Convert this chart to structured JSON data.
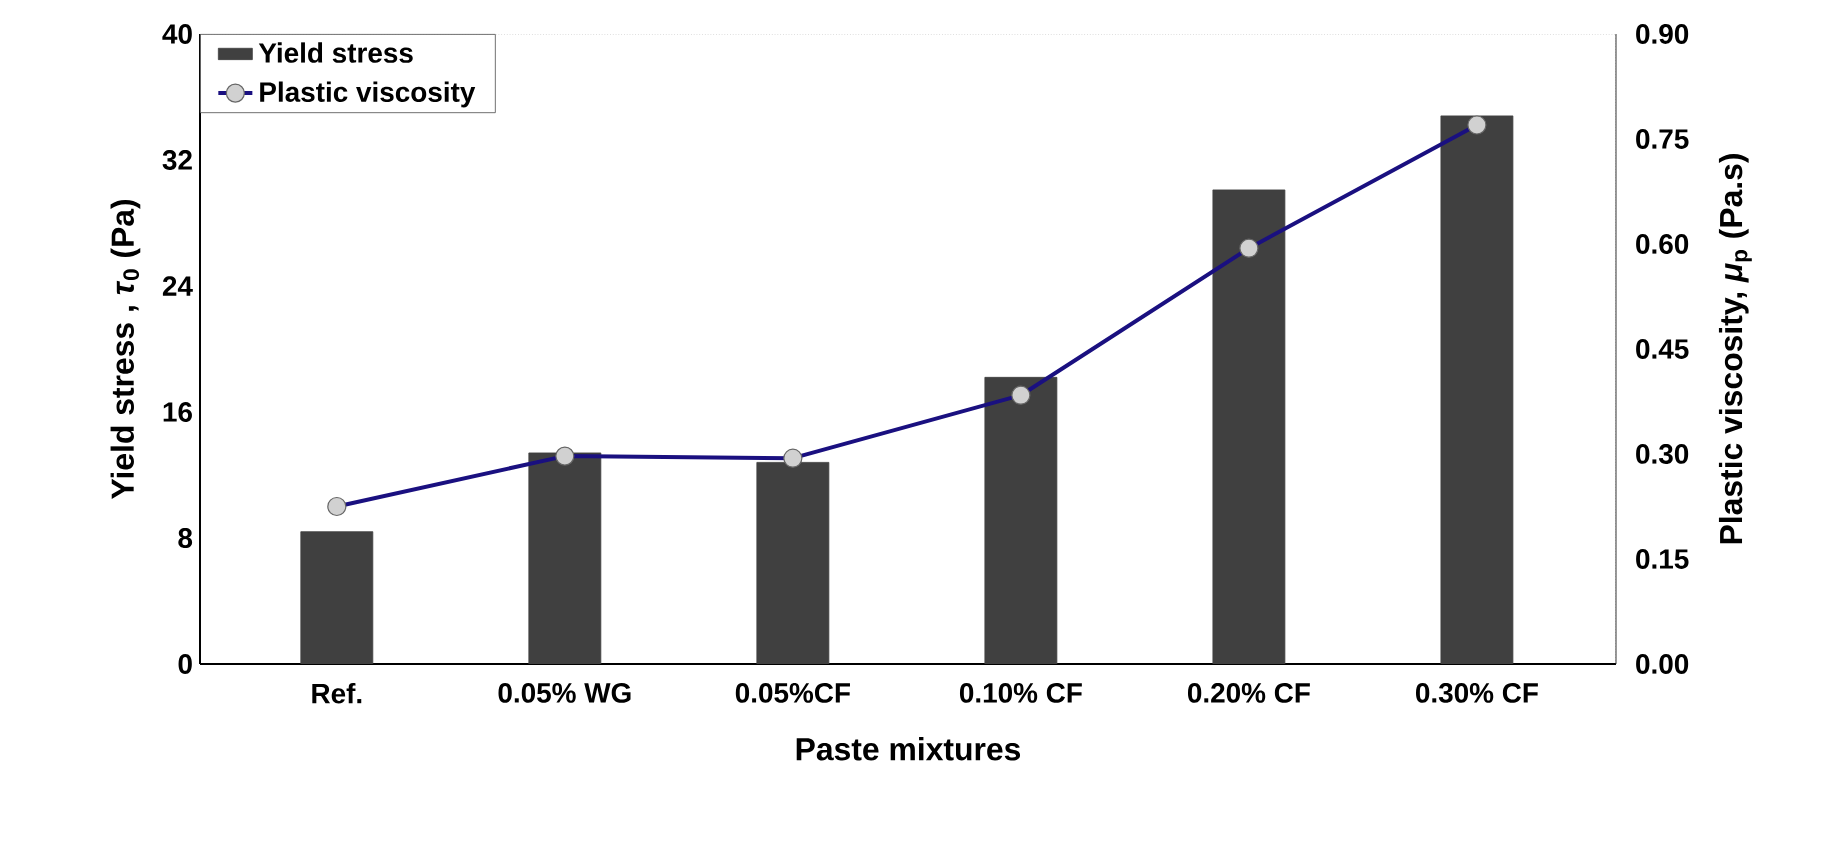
{
  "chart_data": {
    "type": "bar",
    "xlabel": "Paste mixtures",
    "ylabel": "Yield stress , *τ*$_{0}$ (Pa)",
    "y2label": "Plastic viscosity, *μ*$_{p}$ (Pa.s)",
    "categories": [
      "Ref.",
      "0.05% WG",
      "0.05%CF",
      "0.10% CF",
      "0.20% CF",
      "0.30% CF"
    ],
    "series": [
      {
        "name": "Yield stress",
        "color": "#404040",
        "values": [
          8.4,
          13.4,
          12.8,
          18.2,
          30.1,
          34.8
        ]
      },
      {
        "name": "Plastic viscosity",
        "type": "line",
        "axis": "y2",
        "color": "#1a1080",
        "marker": "circle",
        "values": [
          0.225,
          0.297,
          0.294,
          0.384,
          0.594,
          0.77
        ]
      }
    ],
    "ylim": [
      0,
      40
    ],
    "yticks": [
      0,
      8,
      16,
      24,
      32,
      40
    ],
    "y2lim": [
      0,
      0.9
    ],
    "y2ticks": [
      {
        "value": 0,
        "label": "0.00"
      },
      {
        "value": 0.15,
        "label": "0.15"
      },
      {
        "value": 0.3,
        "label": "0.30"
      },
      {
        "value": 0.45,
        "label": "0.45"
      },
      {
        "value": 0.6,
        "label": "0.60"
      },
      {
        "value": 0.75,
        "label": "0.75"
      },
      {
        "value": 0.9,
        "label": "0.90"
      }
    ],
    "legend": "top left",
    "grid": false
  }
}
